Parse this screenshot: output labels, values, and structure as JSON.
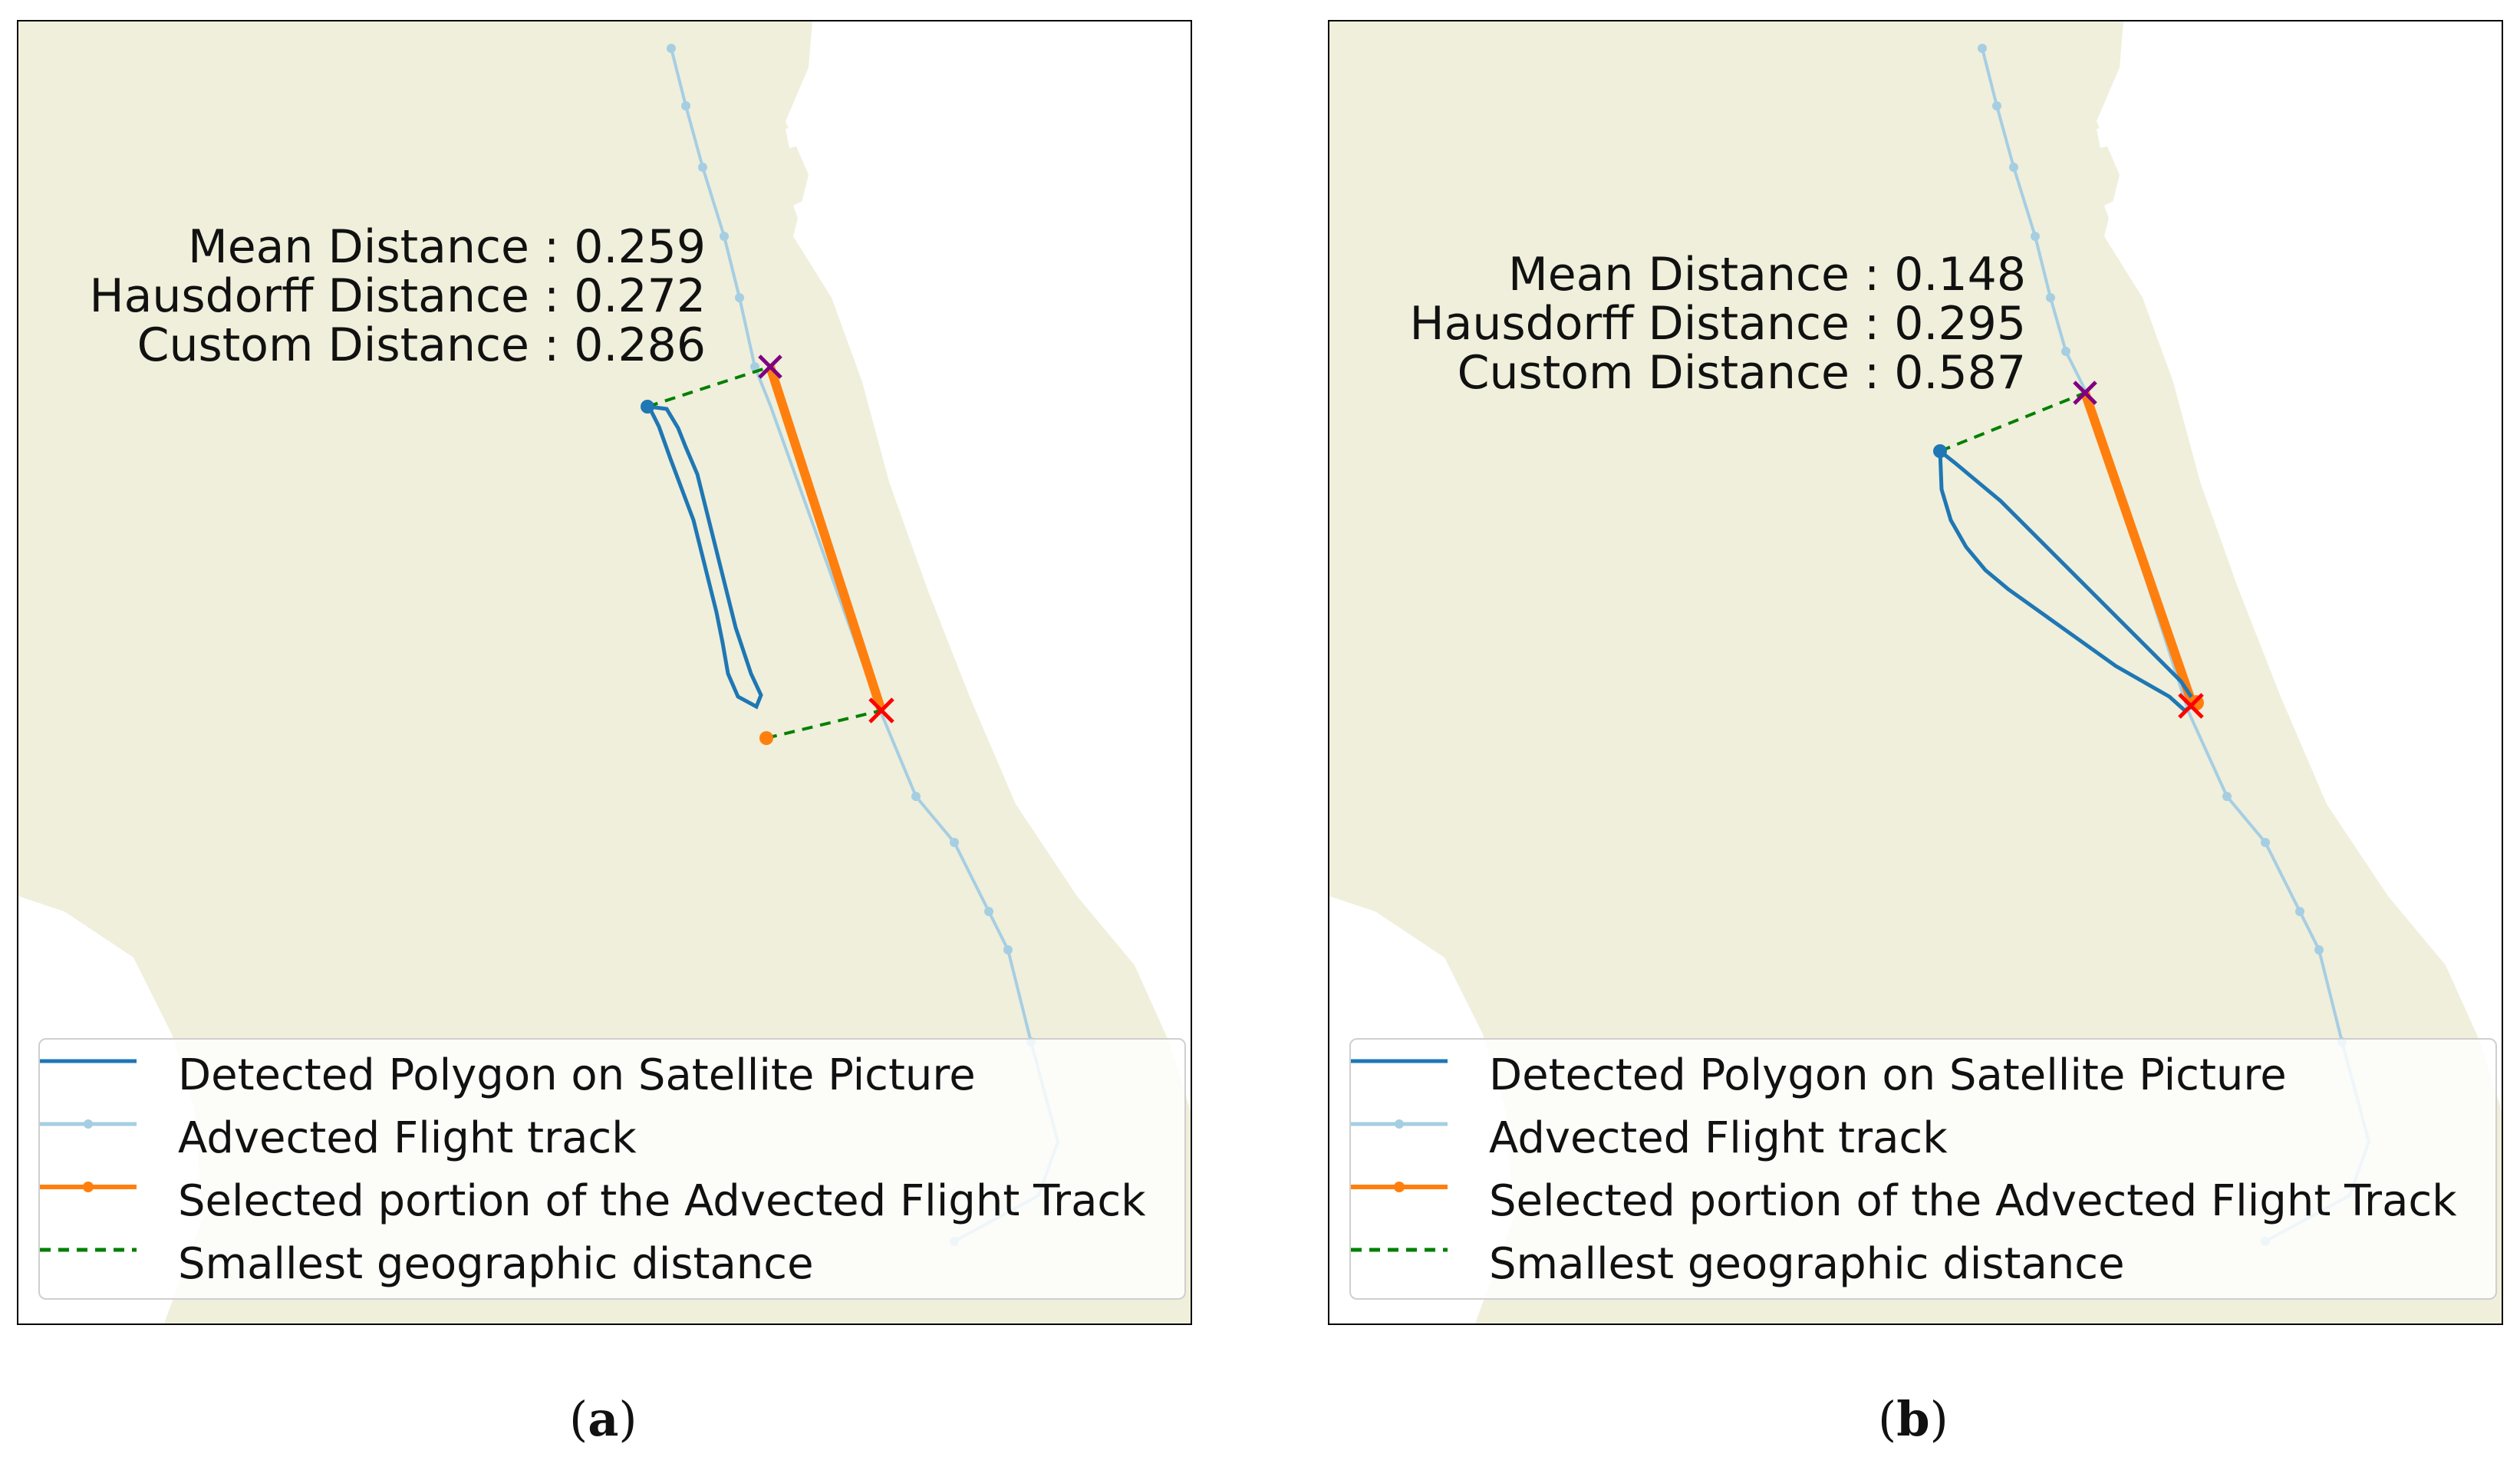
{
  "panels": [
    {
      "id": "a",
      "caption_letter": "a",
      "metrics": [
        {
          "label": "Mean Distance",
          "value": "0.259"
        },
        {
          "label": "Hausdorff Distance",
          "value": "0.272"
        },
        {
          "label": "Custom Distance",
          "value": "0.286"
        }
      ],
      "metric_lines": [
        "Mean Distance : 0.259",
        "Hausdorff Distance : 0.272",
        "Custom Distance : 0.286"
      ]
    },
    {
      "id": "b",
      "caption_letter": "b",
      "metrics": [
        {
          "label": "Mean Distance",
          "value": "0.148"
        },
        {
          "label": "Hausdorff Distance",
          "value": "0.295"
        },
        {
          "label": "Custom Distance",
          "value": "0.587"
        }
      ],
      "metric_lines": [
        "Mean Distance : 0.148",
        "Hausdorff Distance : 0.295",
        "Custom Distance : 0.587"
      ]
    }
  ],
  "legend": [
    {
      "label": "Detected Polygon on Satellite Picture",
      "color": "#1f77b4",
      "style": "line"
    },
    {
      "label": "Advected Flight track",
      "color": "#a6cee3",
      "style": "line-dot"
    },
    {
      "label": "Selected portion of the Advected Flight Track",
      "color": "#ff7f0e",
      "style": "line-dot"
    },
    {
      "label": "Smallest geographic distance",
      "color": "#008000",
      "style": "dashed"
    }
  ],
  "colors": {
    "land": "#efefdb",
    "sea": "#ffffff",
    "polygon": "#1f77b4",
    "flight_track": "#a6cee3",
    "selected_track": "#ff7f0e",
    "distance_line": "#008000",
    "start_marker": "#800080",
    "end_marker": "#ff0000"
  }
}
